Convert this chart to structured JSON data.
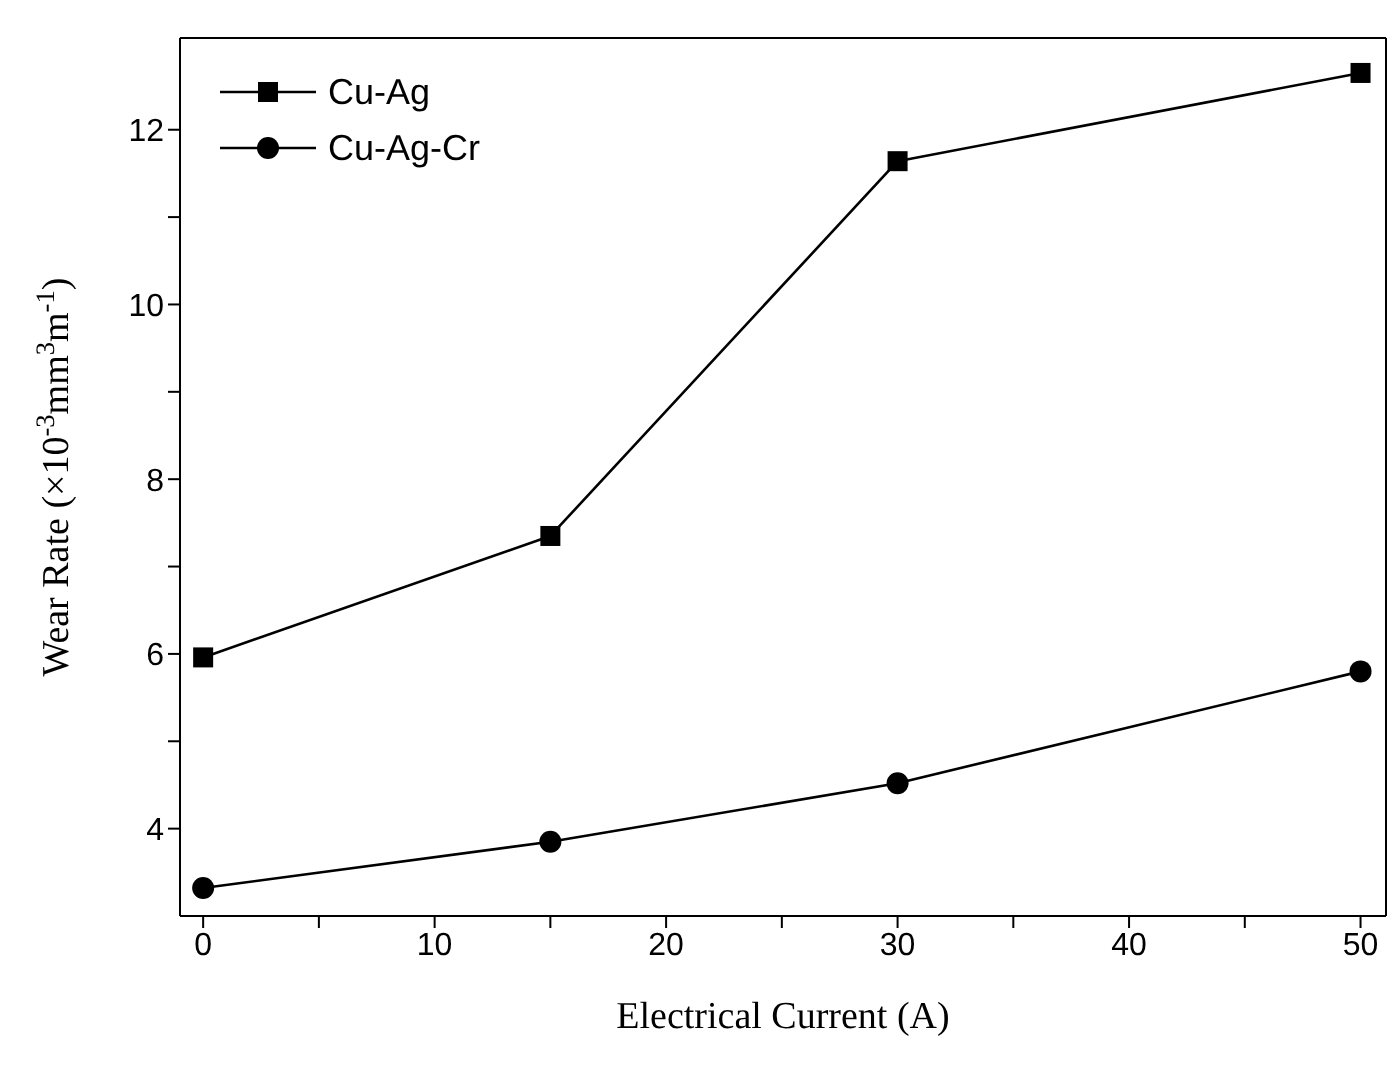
{
  "chart_data": {
    "type": "line",
    "xlabel": "Electrical Current (A)",
    "ylabel": "Wear Rate (×10$^{-3}$mm$^{3}$m$^{-1}$)",
    "x": [
      0,
      15,
      30,
      50
    ],
    "series": [
      {
        "name": "Cu-Ag",
        "color": "#000000",
        "marker": "square",
        "values": [
          5.96,
          7.35,
          11.64,
          12.65
        ]
      },
      {
        "name": "Cu-Ag-Cr",
        "color": "#000000",
        "marker": "circle",
        "values": [
          3.32,
          3.85,
          4.52,
          5.8
        ]
      }
    ],
    "xlim": [
      -1,
      51.1
    ],
    "xticks": [
      0,
      {
        "value": 5,
        "label": null
      },
      10,
      {
        "value": 15,
        "label": null
      },
      20,
      {
        "value": 25,
        "label": null
      },
      30,
      {
        "value": 35,
        "label": null
      },
      40,
      {
        "value": 45,
        "label": null
      },
      50
    ],
    "ylim": [
      3,
      13.05
    ],
    "yticks": [
      4,
      {
        "value": 5,
        "label": null
      },
      6,
      {
        "value": 7,
        "label": null
      },
      8,
      {
        "value": 9,
        "label": null
      },
      10,
      {
        "value": 11,
        "label": null
      },
      12
    ],
    "grid": false,
    "legend": "top left",
    "line_style": "solid"
  }
}
